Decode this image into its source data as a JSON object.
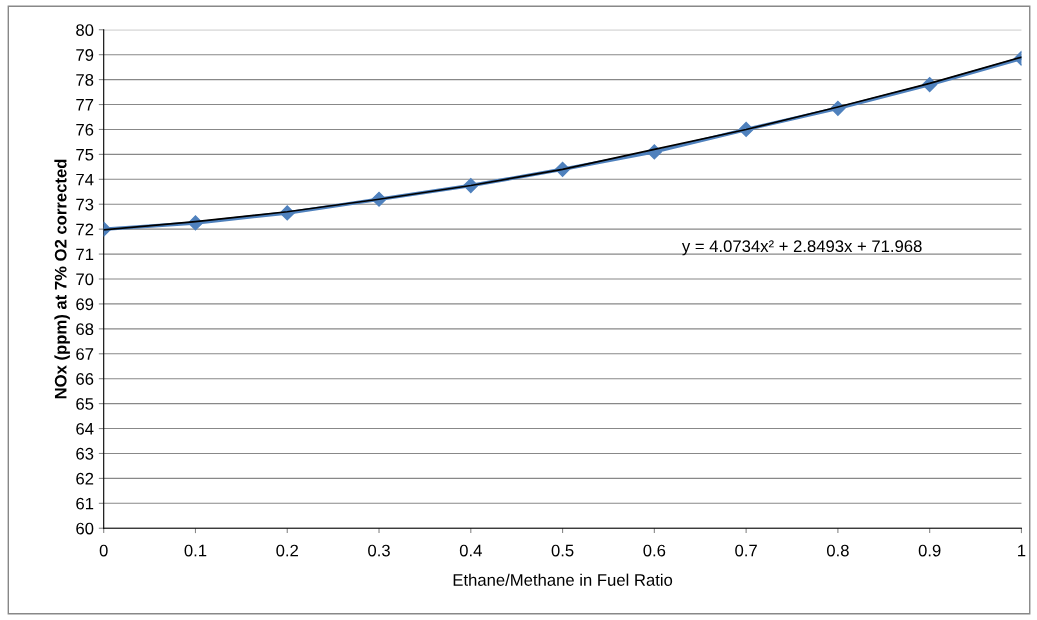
{
  "chart_data": {
    "type": "line",
    "xlabel": "Ethane/Methane in Fuel Ratio",
    "ylabel": "NOx (ppm) at 7% O2 corrected",
    "x": [
      0,
      0.1,
      0.2,
      0.3,
      0.4,
      0.5,
      0.6,
      0.7,
      0.8,
      0.9,
      1
    ],
    "series": [
      {
        "color": "#4f81bd",
        "values": [
          72.0,
          72.25,
          72.65,
          73.2,
          73.75,
          74.4,
          75.1,
          76.0,
          76.85,
          77.8,
          78.85
        ],
        "marker": "diamond"
      },
      {
        "color": "#000000",
        "values": [
          71.97,
          72.3,
          72.7,
          73.2,
          73.75,
          74.4,
          75.2,
          76.0,
          76.9,
          77.85,
          78.9
        ],
        "marker": "none"
      }
    ],
    "xlim": [
      0,
      1
    ],
    "xticks": [
      0,
      0.1,
      0.2,
      0.3,
      0.4,
      0.5,
      0.6,
      0.7,
      0.8,
      0.9,
      1
    ],
    "ylim": [
      60,
      80
    ],
    "yticks": [
      60,
      61,
      62,
      63,
      64,
      65,
      66,
      67,
      68,
      69,
      70,
      71,
      72,
      73,
      74,
      75,
      76,
      77,
      78,
      79,
      80
    ],
    "grid": "y",
    "legend": false,
    "annotations": [
      "y = 4.0734x² + 2.8493x + 71.968"
    ]
  }
}
